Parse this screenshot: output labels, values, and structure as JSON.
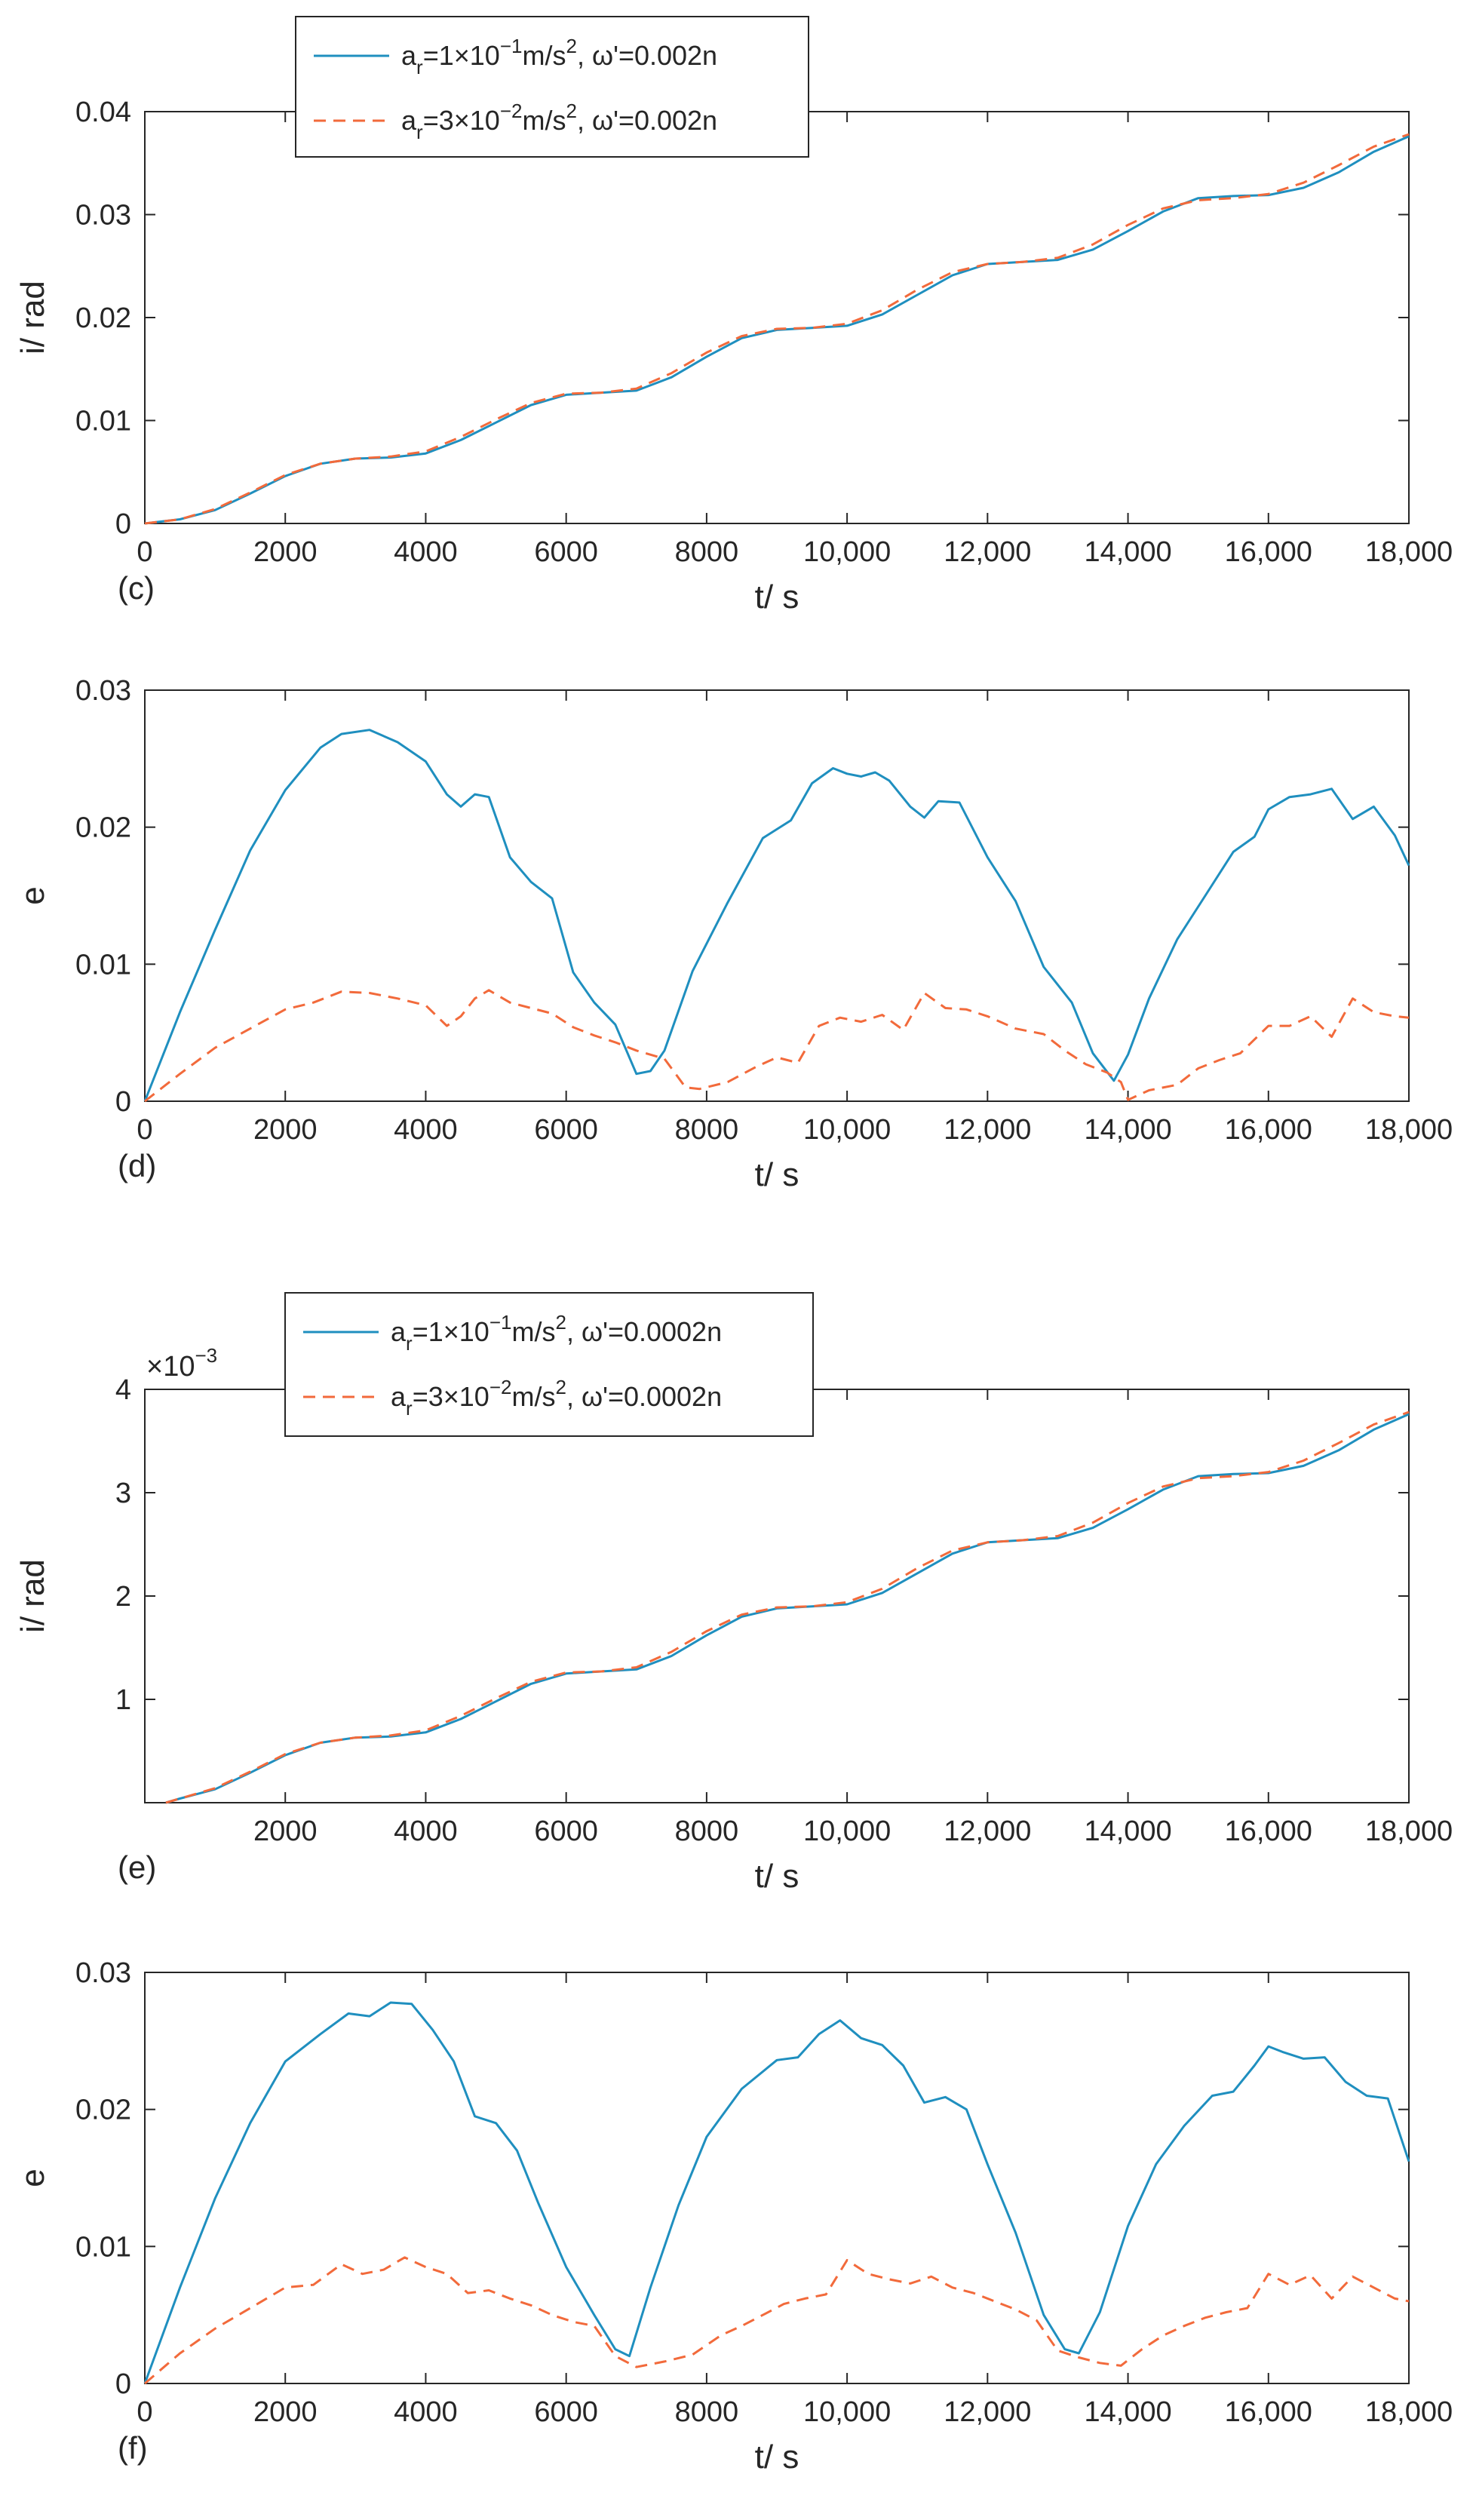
{
  "colors": {
    "series_solid": "#1f8fbf",
    "series_dashed": "#f26a3b",
    "axis": "#262626",
    "legend_border": "#262626"
  },
  "chart_data": [
    {
      "id": "c",
      "type": "line",
      "panel_label": "(c)",
      "xlabel": "t/ s",
      "ylabel": "i/ rad",
      "exponent_label": "",
      "xlim": [
        0,
        18000
      ],
      "ylim": [
        0,
        0.04
      ],
      "x_ticks": [
        0,
        2000,
        4000,
        6000,
        8000,
        10000,
        12000,
        14000,
        16000,
        18000
      ],
      "x_tick_labels": [
        "0",
        "2000",
        "4000",
        "6000",
        "8000",
        "10,000",
        "12,000",
        "14,000",
        "16,000",
        "18,000"
      ],
      "y_ticks": [
        0,
        0.01,
        0.02,
        0.03,
        0.04
      ],
      "y_tick_labels": [
        "0",
        "0.01",
        "0.02",
        "0.03",
        "0.04"
      ],
      "legend": {
        "placement": "top-left",
        "entries": [
          {
            "series": 0,
            "base": "a",
            "sub": "r",
            "pre_sup": "=1×10",
            "sup1": "−1",
            "mid": "m/s",
            "sup2": "2",
            "post": ", ω'=0.002n"
          },
          {
            "series": 1,
            "base": "a",
            "sub": "r",
            "pre_sup": "=3×10",
            "sup1": "−2",
            "mid": "m/s",
            "sup2": "2",
            "post": ", ω'=0.002n"
          }
        ]
      },
      "series": [
        {
          "name": "a_r=1×10^-1 m/s^2, ω'=0.002n",
          "style": "solid",
          "x": [
            0,
            500,
            1000,
            1500,
            2000,
            2500,
            3000,
            3500,
            4000,
            4500,
            5000,
            5500,
            6000,
            6500,
            7000,
            7500,
            8000,
            8500,
            9000,
            9500,
            10000,
            10500,
            11000,
            11500,
            12000,
            12500,
            13000,
            13500,
            14000,
            14500,
            15000,
            15500,
            16000,
            16500,
            17000,
            17500,
            18000
          ],
          "values": [
            0,
            0.0004,
            0.0013,
            0.0029,
            0.0046,
            0.0058,
            0.0063,
            0.0064,
            0.0068,
            0.0081,
            0.0098,
            0.0115,
            0.0125,
            0.0127,
            0.0129,
            0.0142,
            0.0162,
            0.018,
            0.0188,
            0.019,
            0.0192,
            0.0203,
            0.0222,
            0.0241,
            0.0252,
            0.0254,
            0.0256,
            0.0266,
            0.0284,
            0.0303,
            0.0316,
            0.0318,
            0.0319,
            0.0326,
            0.0341,
            0.0361,
            0.0376
          ]
        },
        {
          "name": "a_r=3×10^-2 m/s^2, ω'=0.002n",
          "style": "dashed",
          "x": [
            0,
            500,
            1000,
            1500,
            2000,
            2500,
            3000,
            3500,
            4000,
            4500,
            5000,
            5500,
            6000,
            6500,
            7000,
            7500,
            8000,
            8500,
            9000,
            9500,
            10000,
            10500,
            11000,
            11500,
            12000,
            12500,
            13000,
            13500,
            14000,
            14500,
            15000,
            15500,
            16000,
            16500,
            17000,
            17500,
            18000
          ],
          "values": [
            0,
            0.0004,
            0.0014,
            0.003,
            0.0047,
            0.0058,
            0.0063,
            0.0065,
            0.007,
            0.0084,
            0.0101,
            0.0117,
            0.0126,
            0.0127,
            0.0131,
            0.0146,
            0.0166,
            0.0182,
            0.0189,
            0.019,
            0.0194,
            0.0207,
            0.0227,
            0.0244,
            0.0252,
            0.0254,
            0.0258,
            0.0271,
            0.029,
            0.0306,
            0.0314,
            0.0316,
            0.032,
            0.0331,
            0.0348,
            0.0366,
            0.0378
          ]
        }
      ]
    },
    {
      "id": "d",
      "type": "line",
      "panel_label": "(d)",
      "xlabel": "t/ s",
      "ylabel": "e",
      "exponent_label": "",
      "xlim": [
        0,
        18000
      ],
      "ylim": [
        0,
        0.03
      ],
      "x_ticks": [
        0,
        2000,
        4000,
        6000,
        8000,
        10000,
        12000,
        14000,
        16000,
        18000
      ],
      "x_tick_labels": [
        "0",
        "2000",
        "4000",
        "6000",
        "8000",
        "10,000",
        "12,000",
        "14,000",
        "16,000",
        "18,000"
      ],
      "y_ticks": [
        0,
        0.01,
        0.02,
        0.03
      ],
      "y_tick_labels": [
        "0",
        "0.01",
        "0.02",
        "0.03"
      ],
      "series": [
        {
          "name": "a_r=1×10^-1 m/s^2, ω'=0.002n",
          "style": "solid",
          "x": [
            0,
            500,
            1000,
            1500,
            2000,
            2500,
            2800,
            3200,
            3600,
            4000,
            4300,
            4500,
            4700,
            4900,
            5200,
            5500,
            5800,
            6100,
            6400,
            6700,
            7000,
            7200,
            7400,
            7800,
            8300,
            8800,
            9200,
            9500,
            9800,
            10000,
            10200,
            10400,
            10600,
            10900,
            11100,
            11300,
            11600,
            12000,
            12400,
            12800,
            13200,
            13500,
            13800,
            14000,
            14300,
            14700,
            15100,
            15500,
            15800,
            16000,
            16300,
            16600,
            16900,
            17200,
            17500,
            17800,
            18000
          ],
          "values": [
            0,
            0.0065,
            0.0125,
            0.0183,
            0.0227,
            0.0258,
            0.0268,
            0.0271,
            0.0262,
            0.0248,
            0.0224,
            0.0215,
            0.0224,
            0.0222,
            0.0178,
            0.016,
            0.0148,
            0.0094,
            0.0072,
            0.0056,
            0.002,
            0.0022,
            0.0037,
            0.0095,
            0.0145,
            0.0192,
            0.0205,
            0.0232,
            0.0243,
            0.0239,
            0.0237,
            0.024,
            0.0234,
            0.0215,
            0.0207,
            0.0219,
            0.0218,
            0.0178,
            0.0146,
            0.0098,
            0.0072,
            0.0035,
            0.0015,
            0.0034,
            0.0075,
            0.0118,
            0.015,
            0.0182,
            0.0193,
            0.0213,
            0.0222,
            0.0224,
            0.0228,
            0.0206,
            0.0215,
            0.0194,
            0.0172
          ]
        },
        {
          "name": "a_r=3×10^-2 m/s^2, ω'=0.002n",
          "style": "dashed",
          "x": [
            0,
            500,
            1000,
            1500,
            2000,
            2400,
            2800,
            3200,
            3600,
            4000,
            4300,
            4500,
            4700,
            4900,
            5200,
            5500,
            5800,
            6100,
            6400,
            6700,
            7000,
            7400,
            7700,
            7900,
            8300,
            8700,
            9000,
            9300,
            9600,
            9900,
            10200,
            10500,
            10800,
            11100,
            11400,
            11700,
            12000,
            12400,
            12800,
            13100,
            13400,
            13700,
            13900,
            14000,
            14300,
            14700,
            15000,
            15300,
            15600,
            16000,
            16300,
            16600,
            16900,
            17200,
            17500,
            17800,
            18000
          ],
          "values": [
            0,
            0.002,
            0.0039,
            0.0053,
            0.0067,
            0.0072,
            0.008,
            0.0079,
            0.0075,
            0.007,
            0.0055,
            0.0062,
            0.0075,
            0.0081,
            0.0072,
            0.0068,
            0.0064,
            0.0054,
            0.0048,
            0.0043,
            0.0037,
            0.0031,
            0.001,
            0.0009,
            0.0014,
            0.0025,
            0.0032,
            0.0028,
            0.0055,
            0.0061,
            0.0058,
            0.0063,
            0.0052,
            0.0079,
            0.0068,
            0.0067,
            0.0062,
            0.0053,
            0.0049,
            0.0037,
            0.0027,
            0.0021,
            0.0014,
            0.0001,
            0.0008,
            0.0012,
            0.0024,
            0.003,
            0.0035,
            0.0055,
            0.0055,
            0.0062,
            0.0047,
            0.0075,
            0.0065,
            0.0062,
            0.0061
          ]
        }
      ]
    },
    {
      "id": "e",
      "type": "line",
      "panel_label": "(e)",
      "xlabel": "t/ s",
      "ylabel": "i/ rad",
      "exponent_base": "×10",
      "exponent_sup": "−3",
      "xlim": [
        0,
        18000
      ],
      "ylim": [
        0,
        4
      ],
      "x_ticks": [
        2000,
        4000,
        6000,
        8000,
        10000,
        12000,
        14000,
        16000,
        18000
      ],
      "x_tick_labels": [
        "2000",
        "4000",
        "6000",
        "8000",
        "10,000",
        "12,000",
        "14,000",
        "16,000",
        "18,000"
      ],
      "y_ticks": [
        1,
        2,
        3,
        4
      ],
      "y_tick_labels": [
        "1",
        "2",
        "3",
        "4"
      ],
      "legend": {
        "placement": "top-left",
        "entries": [
          {
            "series": 0,
            "base": "a",
            "sub": "r",
            "pre_sup": "=1×10",
            "sup1": "−1",
            "mid": "m/s",
            "sup2": "2",
            "post": ", ω'=0.0002n"
          },
          {
            "series": 1,
            "base": "a",
            "sub": "r",
            "pre_sup": "=3×10",
            "sup1": "−2",
            "mid": "m/s",
            "sup2": "2",
            "post": ", ω'=0.0002n"
          }
        ]
      },
      "series": [
        {
          "name": "a_r=1×10^-1 m/s^2, ω'=0.0002n",
          "style": "solid",
          "x": [
            300,
            500,
            1000,
            1500,
            2000,
            2500,
            3000,
            3500,
            4000,
            4500,
            5000,
            5500,
            6000,
            6500,
            7000,
            7500,
            8000,
            8500,
            9000,
            9500,
            10000,
            10500,
            11000,
            11500,
            12000,
            12500,
            13000,
            13500,
            14000,
            14500,
            15000,
            15500,
            16000,
            16500,
            17000,
            17500,
            18000
          ],
          "values": [
            0,
            0.04,
            0.13,
            0.29,
            0.46,
            0.58,
            0.63,
            0.64,
            0.68,
            0.81,
            0.98,
            1.15,
            1.25,
            1.27,
            1.29,
            1.42,
            1.62,
            1.8,
            1.88,
            1.9,
            1.92,
            2.03,
            2.22,
            2.41,
            2.52,
            2.54,
            2.56,
            2.66,
            2.84,
            3.03,
            3.16,
            3.18,
            3.19,
            3.26,
            3.41,
            3.61,
            3.76
          ]
        },
        {
          "name": "a_r=3×10^-2 m/s^2, ω'=0.0002n",
          "style": "dashed",
          "x": [
            300,
            500,
            1000,
            1500,
            2000,
            2500,
            3000,
            3500,
            4000,
            4500,
            5000,
            5500,
            6000,
            6500,
            7000,
            7500,
            8000,
            8500,
            9000,
            9500,
            10000,
            10500,
            11000,
            11500,
            12000,
            12500,
            13000,
            13500,
            14000,
            14500,
            15000,
            15500,
            16000,
            16500,
            17000,
            17500,
            18000
          ],
          "values": [
            0,
            0.04,
            0.14,
            0.3,
            0.47,
            0.58,
            0.63,
            0.65,
            0.7,
            0.84,
            1.01,
            1.17,
            1.26,
            1.27,
            1.31,
            1.46,
            1.66,
            1.82,
            1.89,
            1.9,
            1.94,
            2.07,
            2.27,
            2.44,
            2.52,
            2.54,
            2.58,
            2.71,
            2.9,
            3.06,
            3.14,
            3.16,
            3.2,
            3.31,
            3.48,
            3.66,
            3.78
          ]
        }
      ]
    },
    {
      "id": "f",
      "type": "line",
      "panel_label": "(f)",
      "xlabel": "t/ s",
      "ylabel": "e",
      "exponent_label": "",
      "xlim": [
        0,
        18000
      ],
      "ylim": [
        0,
        0.03
      ],
      "x_ticks": [
        0,
        2000,
        4000,
        6000,
        8000,
        10000,
        12000,
        14000,
        16000,
        18000
      ],
      "x_tick_labels": [
        "0",
        "2000",
        "4000",
        "6000",
        "8000",
        "10,000",
        "12,000",
        "14,000",
        "16,000",
        "18,000"
      ],
      "y_ticks": [
        0,
        0.01,
        0.02,
        0.03
      ],
      "y_tick_labels": [
        "0",
        "0.01",
        "0.02",
        "0.03"
      ],
      "series": [
        {
          "name": "a_r=1×10^-1 m/s^2",
          "style": "solid",
          "x": [
            0,
            500,
            1000,
            1500,
            2000,
            2500,
            2900,
            3200,
            3500,
            3800,
            4100,
            4400,
            4700,
            5000,
            5300,
            5600,
            6000,
            6400,
            6700,
            6900,
            7200,
            7600,
            8000,
            8500,
            9000,
            9300,
            9600,
            9900,
            10200,
            10500,
            10800,
            11100,
            11400,
            11700,
            12000,
            12400,
            12800,
            13100,
            13300,
            13600,
            14000,
            14400,
            14800,
            15200,
            15500,
            15800,
            16000,
            16200,
            16500,
            16800,
            17100,
            17400,
            17700,
            18000
          ],
          "values": [
            0,
            0.007,
            0.0135,
            0.019,
            0.0235,
            0.0255,
            0.027,
            0.0268,
            0.0278,
            0.0277,
            0.0258,
            0.0235,
            0.0195,
            0.019,
            0.017,
            0.0132,
            0.0085,
            0.005,
            0.0025,
            0.002,
            0.007,
            0.013,
            0.018,
            0.0215,
            0.0236,
            0.0238,
            0.0255,
            0.0265,
            0.0252,
            0.0247,
            0.0232,
            0.0205,
            0.0209,
            0.02,
            0.016,
            0.011,
            0.005,
            0.0025,
            0.0022,
            0.0052,
            0.0115,
            0.016,
            0.0188,
            0.021,
            0.0213,
            0.0232,
            0.0246,
            0.0242,
            0.0237,
            0.0238,
            0.022,
            0.021,
            0.0208,
            0.0162
          ]
        },
        {
          "name": "a_r=3×10^-2 m/s^2",
          "style": "dashed",
          "x": [
            0,
            500,
            1000,
            1500,
            2000,
            2400,
            2800,
            3100,
            3400,
            3700,
            4000,
            4300,
            4600,
            4900,
            5200,
            5500,
            5800,
            6100,
            6400,
            6700,
            7000,
            7400,
            7800,
            8200,
            8500,
            8800,
            9100,
            9400,
            9700,
            10000,
            10300,
            10600,
            10900,
            11200,
            11500,
            11800,
            12100,
            12400,
            12700,
            13000,
            13300,
            13600,
            13900,
            14200,
            14500,
            14800,
            15100,
            15400,
            15700,
            16000,
            16300,
            16600,
            16900,
            17200,
            17500,
            17800,
            18000
          ],
          "values": [
            0,
            0.0022,
            0.004,
            0.0055,
            0.007,
            0.0072,
            0.0087,
            0.008,
            0.0083,
            0.0092,
            0.0085,
            0.008,
            0.0066,
            0.0068,
            0.0062,
            0.0057,
            0.005,
            0.0045,
            0.0042,
            0.002,
            0.0012,
            0.0016,
            0.0021,
            0.0035,
            0.0042,
            0.005,
            0.0058,
            0.0062,
            0.0065,
            0.009,
            0.008,
            0.0076,
            0.0073,
            0.0078,
            0.007,
            0.0066,
            0.006,
            0.0054,
            0.0046,
            0.0024,
            0.0019,
            0.0015,
            0.0013,
            0.0025,
            0.0035,
            0.0042,
            0.0048,
            0.0052,
            0.0055,
            0.008,
            0.0072,
            0.0079,
            0.0062,
            0.0078,
            0.007,
            0.0062,
            0.006
          ]
        }
      ]
    }
  ]
}
